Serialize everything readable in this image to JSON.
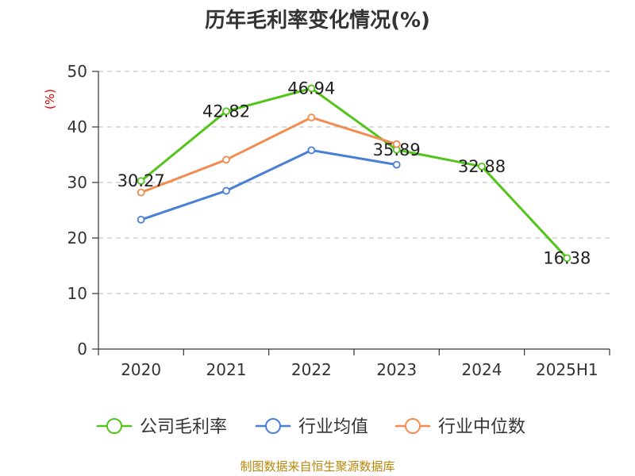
{
  "chart_data": {
    "type": "line",
    "title": "历年毛利率变化情况(%)",
    "ylabel": "(%)",
    "xlabel": "",
    "categories": [
      "2020",
      "2021",
      "2022",
      "2023",
      "2024",
      "2025H1"
    ],
    "ylim": [
      0,
      50
    ],
    "yticks": [
      0,
      10,
      20,
      30,
      40,
      50
    ],
    "grid": true,
    "legend_position": "bottom",
    "series": [
      {
        "name": "公司毛利率",
        "color": "#52c41a",
        "values": [
          30.27,
          42.82,
          46.94,
          35.89,
          32.88,
          16.38
        ],
        "show_labels": true
      },
      {
        "name": "行业均值",
        "color": "#4a7fd6",
        "values": [
          23.3,
          28.5,
          35.8,
          33.2,
          null,
          null
        ],
        "show_labels": false
      },
      {
        "name": "行业中位数",
        "color": "#f28c50",
        "values": [
          28.2,
          34.1,
          41.7,
          36.9,
          null,
          null
        ],
        "show_labels": false
      }
    ],
    "data_labels": [
      "30.27",
      "42.82",
      "46.94",
      "35.89",
      "32.88",
      "16.38"
    ]
  },
  "source": "制图数据来自恒生聚源数据库"
}
